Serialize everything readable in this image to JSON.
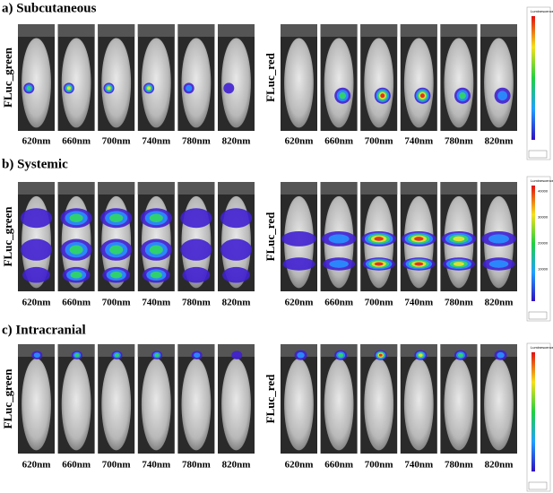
{
  "panels": [
    {
      "title": "a) Subcutaneous",
      "groups": [
        {
          "label": "FLuc_green",
          "wavelengths": [
            "620nm",
            "660nm",
            "700nm",
            "740nm",
            "780nm",
            "820nm"
          ]
        },
        {
          "label": "FLuc_red",
          "wavelengths": [
            "620nm",
            "660nm",
            "700nm",
            "740nm",
            "780nm",
            "820nm"
          ]
        }
      ],
      "colorbar": {
        "title": "Luminescence"
      }
    },
    {
      "title": "b) Systemic",
      "groups": [
        {
          "label": "FLuc_green",
          "wavelengths": [
            "620nm",
            "660nm",
            "700nm",
            "740nm",
            "780nm",
            "820nm"
          ]
        },
        {
          "label": "FLuc_red",
          "wavelengths": [
            "620nm",
            "660nm",
            "700nm",
            "740nm",
            "780nm",
            "820nm"
          ]
        }
      ],
      "colorbar": {
        "title": "Luminescence",
        "ticks": [
          "40000",
          "30000",
          "20000",
          "10000"
        ]
      }
    },
    {
      "title": "c) Intracranial",
      "groups": [
        {
          "label": "FLuc_green",
          "wavelengths": [
            "620nm",
            "660nm",
            "700nm",
            "740nm",
            "780nm",
            "820nm"
          ]
        },
        {
          "label": "FLuc_red",
          "wavelengths": [
            "620nm",
            "660nm",
            "700nm",
            "740nm",
            "780nm",
            "820nm"
          ]
        }
      ],
      "colorbar": {
        "title": "Luminescence"
      }
    }
  ]
}
